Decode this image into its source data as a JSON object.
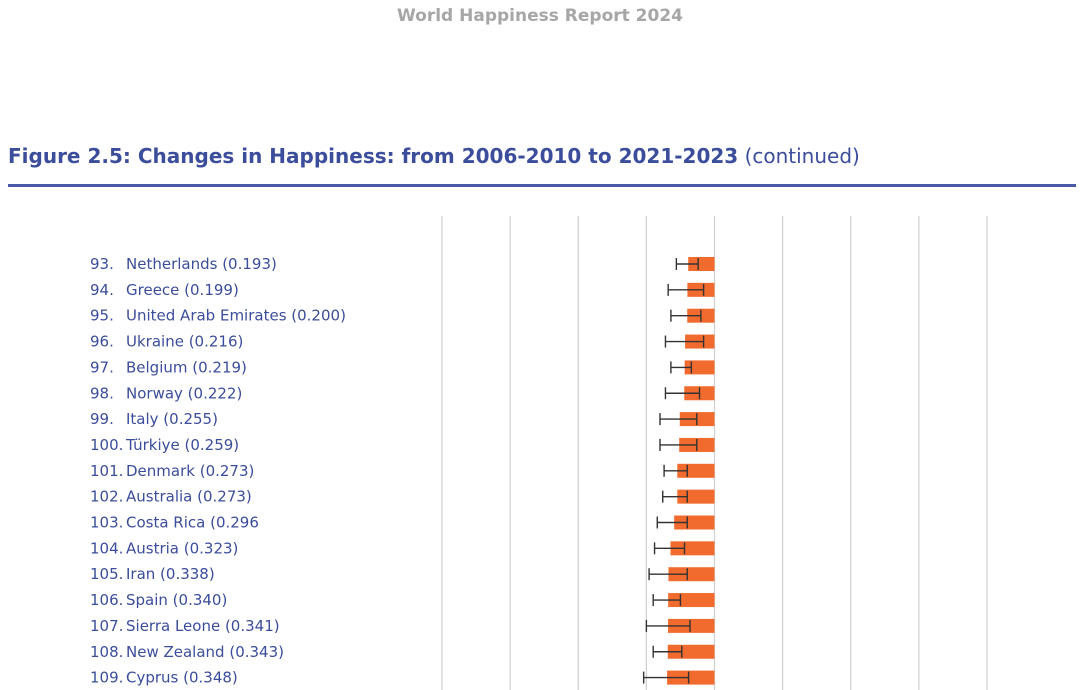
{
  "header": {
    "report_title": "World Happiness Report 2024"
  },
  "figure": {
    "title": "Figure 2.5: Changes in Happiness: from 2006-2010 to 2021-2023",
    "title_suffix": "(continued)"
  },
  "colors": {
    "bar": "#f26b2e",
    "label": "#3b4d9b",
    "title": "#3b4d9b",
    "rule": "#4a5aa8",
    "gridline": "#d0d0d0",
    "errorbar": "#333333",
    "header": "#a6a6a6"
  },
  "chart_data": {
    "type": "bar",
    "orientation": "horizontal",
    "direction": "decrease",
    "grid": true,
    "categories": [
      "93. Netherlands (0.193)",
      "94. Greece (0.199)",
      "95. United Arab Emirates (0.200)",
      "96. Ukraine (0.216)",
      "97. Belgium (0.219)",
      "98. Norway (0.222)",
      "99. Italy (0.255)",
      "100. Türkiye (0.259)",
      "101. Denmark (0.273)",
      "102. Australia (0.273)",
      "103. Costa Rica (0.296",
      "104. Austria (0.323)",
      "105. Iran (0.338)",
      "106. Spain (0.340)",
      "107. Sierra Leone (0.341)",
      "108. New Zealand (0.343)",
      "109. Cyprus (0.348)"
    ],
    "values": [
      -0.193,
      -0.199,
      -0.2,
      -0.216,
      -0.219,
      -0.222,
      -0.255,
      -0.259,
      -0.273,
      -0.273,
      -0.296,
      -0.323,
      -0.338,
      -0.34,
      -0.341,
      -0.343,
      -0.348
    ],
    "ci_low": [
      -0.28,
      -0.34,
      -0.32,
      -0.36,
      -0.32,
      -0.36,
      -0.4,
      -0.4,
      -0.37,
      -0.38,
      -0.42,
      -0.44,
      -0.48,
      -0.45,
      -0.5,
      -0.45,
      -0.52
    ],
    "ci_high": [
      -0.12,
      -0.08,
      -0.1,
      -0.08,
      -0.17,
      -0.11,
      -0.13,
      -0.13,
      -0.2,
      -0.2,
      -0.2,
      -0.22,
      -0.2,
      -0.25,
      -0.18,
      -0.24,
      -0.19
    ],
    "xlim": [
      -2.0,
      2.0
    ],
    "gridlines": [
      -2.0,
      -1.5,
      -1.0,
      -0.5,
      0.0,
      0.5,
      1.0,
      1.5,
      2.0
    ]
  }
}
